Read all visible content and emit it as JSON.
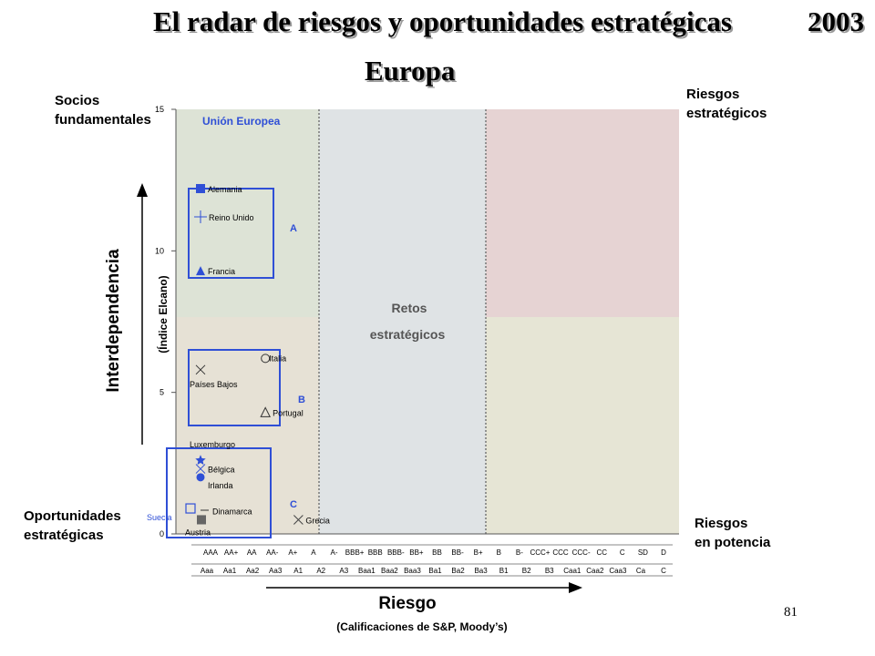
{
  "slide": {
    "title": "El radar de riesgos y oportunidades estratégicas",
    "year": "2003",
    "subtitle": "Europa",
    "page_number": "81",
    "corners": {
      "top_left": [
        "Socios",
        "fundamentales"
      ],
      "top_right": [
        "Riesgos",
        "estratégicos"
      ],
      "bottom_left": [
        "Oportunidades",
        "estratégicas"
      ],
      "bottom_right": [
        "Riesgos",
        "en potencia"
      ]
    }
  },
  "chart_data": {
    "type": "scatter",
    "y_axis_label": "(Índice Elcano)",
    "y_axis_big_label": "Interdependencia",
    "x_axis_label": "Riesgo",
    "x_axis_sublabel": "(Calificaciones de S&P, Moody’s)",
    "ylim": [
      0,
      15
    ],
    "y_ticks": [
      "0",
      "5",
      "10",
      "15"
    ],
    "x_categories_sp": [
      "AAA",
      "AA+",
      "AA",
      "AA-",
      "A+",
      "A",
      "A-",
      "BBB+",
      "BBB",
      "BBB-",
      "BB+",
      "BB",
      "BB-",
      "B+",
      "B",
      "B-",
      "CCC+",
      "CCC",
      "CCC-",
      "CC",
      "C",
      "SD",
      "D"
    ],
    "x_categories_moodys": [
      "Aaa",
      "Aa1",
      "Aa2",
      "Aa3",
      "A1",
      "A2",
      "A3",
      "Baa1",
      "Baa2",
      "Baa3",
      "Ba1",
      "Ba2",
      "Ba3",
      "B1",
      "B2",
      "B3",
      "Caa1",
      "Caa2",
      "Caa3",
      "Ca",
      "C"
    ],
    "region_label": "Unión Europea",
    "center_label": [
      "Retos",
      "estratégicos"
    ],
    "group_labels": [
      "A",
      "B",
      "C"
    ],
    "groups": {
      "A": [
        "Alemania",
        "Reino Unido",
        "Francia"
      ],
      "B": [
        "Italia",
        "Países Bajos",
        "Portugal"
      ],
      "C": [
        "Luxemburgo",
        "Bélgica",
        "Irlanda",
        "Suecia",
        "Dinamarca",
        "Austria",
        "Grecia"
      ]
    },
    "points": [
      {
        "name": "Alemania",
        "rating": "AAA",
        "y": 12.2,
        "marker": "square-filled",
        "color": "#2f4fd6"
      },
      {
        "name": "Reino Unido",
        "rating": "AAA",
        "y": 11.2,
        "marker": "plus",
        "color": "#2f4fd6"
      },
      {
        "name": "Francia",
        "rating": "AAA",
        "y": 9.3,
        "marker": "triangle-filled",
        "color": "#2f4fd6"
      },
      {
        "name": "Italia",
        "rating": "AA",
        "y": 6.2,
        "marker": "circle-open",
        "color": "#333333"
      },
      {
        "name": "Países Bajos",
        "rating": "AAA",
        "y": 5.8,
        "marker": "x",
        "color": "#333333"
      },
      {
        "name": "Portugal",
        "rating": "AA",
        "y": 4.3,
        "marker": "triangle-open",
        "color": "#333333"
      },
      {
        "name": "Luxemburgo",
        "rating": "AAA",
        "y": 2.6,
        "marker": "star-filled",
        "color": "#2f4fd6"
      },
      {
        "name": "Bélgica",
        "rating": "AAA",
        "y": 2.3,
        "marker": "x",
        "color": "#2f4fd6"
      },
      {
        "name": "Irlanda",
        "rating": "AAA",
        "y": 2.0,
        "marker": "circle-filled",
        "color": "#2f4fd6"
      },
      {
        "name": "Suecia",
        "rating": "AAA",
        "y": 0.9,
        "marker": "square-open",
        "color": "#2f4fd6"
      },
      {
        "name": "Dinamarca",
        "rating": "AAA",
        "y": 0.5,
        "marker": "square-filled",
        "color": "#666666"
      },
      {
        "name": "Austria",
        "rating": "AAA",
        "y": 0.5,
        "marker": "square-filled",
        "color": "#666666"
      },
      {
        "name": "Grecia",
        "rating": "A+",
        "y": 0.5,
        "marker": "x",
        "color": "#444444"
      }
    ],
    "quadrant_colors": {
      "top_left": "#dde3d6",
      "bottom_left": "#e6e1d5",
      "middle": "#dfe3e5",
      "top_right": "#e6d3d3",
      "bottom_right": "#e6e5d5"
    },
    "accent_color": "#2f4fd6"
  }
}
